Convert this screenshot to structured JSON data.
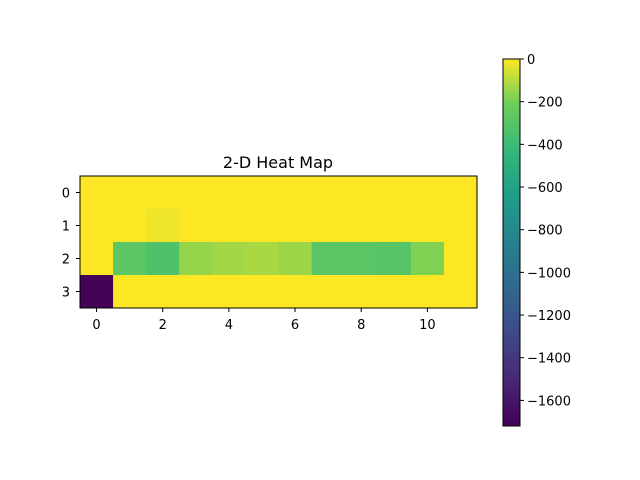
{
  "chart_data": {
    "type": "heatmap",
    "title": "2-D Heat Map",
    "xlabel": "",
    "ylabel": "",
    "x_ticks": [
      0,
      2,
      4,
      6,
      8,
      10
    ],
    "y_ticks": [
      0,
      1,
      2,
      3
    ],
    "n_cols": 12,
    "n_rows": 4,
    "values": [
      [
        0,
        0,
        0,
        0,
        0,
        0,
        0,
        0,
        0,
        0,
        0,
        0
      ],
      [
        0,
        0,
        -20,
        0,
        0,
        0,
        0,
        0,
        0,
        0,
        0,
        0
      ],
      [
        0,
        -280,
        -330,
        -150,
        -130,
        -120,
        -140,
        -290,
        -290,
        -300,
        -180,
        0
      ],
      [
        -1710,
        0,
        0,
        0,
        0,
        0,
        0,
        0,
        0,
        0,
        0,
        0
      ]
    ],
    "colorbar": {
      "colormap": "viridis",
      "min": -1720,
      "max": 0,
      "ticks": [
        0,
        -200,
        -400,
        -600,
        -800,
        -1000,
        -1200,
        -1400,
        -1600
      ],
      "tick_labels": [
        "0",
        "−200",
        "−400",
        "−600",
        "−800",
        "−1000",
        "−1200",
        "−1400",
        "−1600"
      ]
    },
    "grid": false,
    "legend": "none"
  }
}
